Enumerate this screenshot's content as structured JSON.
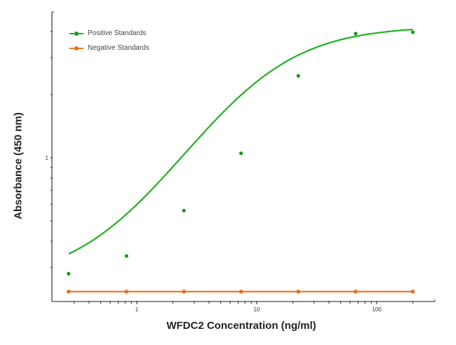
{
  "chart_data": {
    "type": "scatter",
    "title": "",
    "xlabel": "WFDC2 Concentration (ng/ml)",
    "ylabel": "Absorbance (450 nm)",
    "xscale": "log",
    "yscale": "log",
    "xlim": [
      0.2,
      300
    ],
    "ylim": [
      0.21,
      4.6
    ],
    "x_tick_labels": [
      "1",
      "10",
      "100"
    ],
    "y_tick_labels": [
      "1"
    ],
    "grid": false,
    "legend_position": "upper left",
    "series": [
      {
        "name": "Positive Standards",
        "color": "#22b022",
        "marker": "circle",
        "fit": "4PL curve",
        "x": [
          0.27,
          0.82,
          2.47,
          7.4,
          22.2,
          66.7,
          200
        ],
        "y": [
          0.28,
          0.34,
          0.56,
          1.05,
          2.46,
          3.91,
          3.97
        ]
      },
      {
        "name": "Negative Standards",
        "color": "#f07a1a",
        "marker": "circle",
        "fit": "flat line",
        "x": [
          0.27,
          0.82,
          2.47,
          7.4,
          22.2,
          66.7,
          200
        ],
        "y": [
          0.23,
          0.23,
          0.23,
          0.23,
          0.23,
          0.23,
          0.23
        ]
      }
    ]
  },
  "legend": {
    "positive": "Positive Standards",
    "negative": "Negative Standards"
  },
  "axes": {
    "x_title": "WFDC2 Concentration (ng/ml)",
    "y_title": "Absorbance (450 nm)"
  }
}
